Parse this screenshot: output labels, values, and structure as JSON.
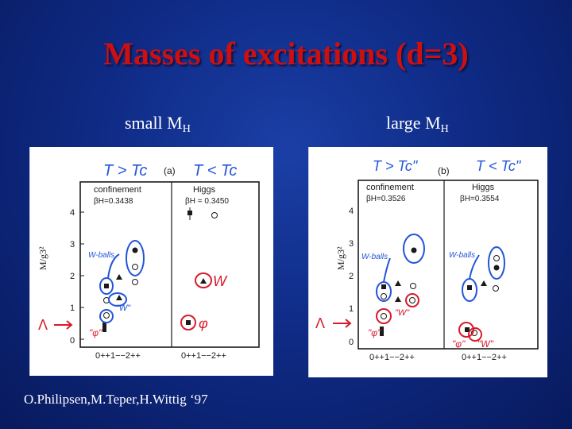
{
  "slide": {
    "title": "Masses of excitations (d=3)",
    "left_label": {
      "text": "small M",
      "sub": "H"
    },
    "right_label": {
      "text": "large  M",
      "sub": "H"
    },
    "credit": "O.Philipsen,M.Teper,H.Wittig ‘97"
  },
  "panel_a": {
    "panel_letter": "(a)",
    "header_left": "T > Tc",
    "header_right": "T < Tc",
    "phase_left": "confinement",
    "beta_left": "βH=0.3438",
    "phase_right": "Higgs",
    "beta_right": "βH = 0.3450",
    "ylabel": "M/g3²",
    "yticks": [
      "4",
      "3",
      "2",
      "1",
      "0"
    ],
    "xticks_left": "0++1−−2++",
    "xticks_right": "0++1−−2++",
    "anno_wballs": "W-balls",
    "anno_w_quoted": "\"W\"",
    "anno_phi_quoted": "\"φ\"",
    "anno_W": "W",
    "anno_phi": "φ",
    "anno_lambda": "Λ"
  },
  "panel_b": {
    "panel_letter": "(b)",
    "header_left": "T > Tc\"",
    "header_right": "T < Tc\"",
    "phase_left": "confinement",
    "beta_left": "βH=0.3526",
    "phase_right": "Higgs",
    "beta_right": "βH=0.3554",
    "ylabel": "M/g3²",
    "yticks": [
      "4",
      "3",
      "2",
      "1",
      "0"
    ],
    "xticks_left": "0++1−−2++",
    "xticks_right": "0++1−−2++",
    "anno_wballs_left": "W-balls",
    "anno_wballs_right": "W-balls",
    "anno_w_quoted": "\"W\"",
    "anno_phi_quoted": "\"φ\"",
    "anno_phi_quoted_right": "\"φ\"",
    "anno_w_quoted_right": "\"W\"",
    "anno_lambda": "Λ"
  },
  "colors": {
    "title": "#cc1010",
    "annotation": "#2255d8",
    "annotation_red": "#d81a2a",
    "ink": "#1a1a1a"
  }
}
